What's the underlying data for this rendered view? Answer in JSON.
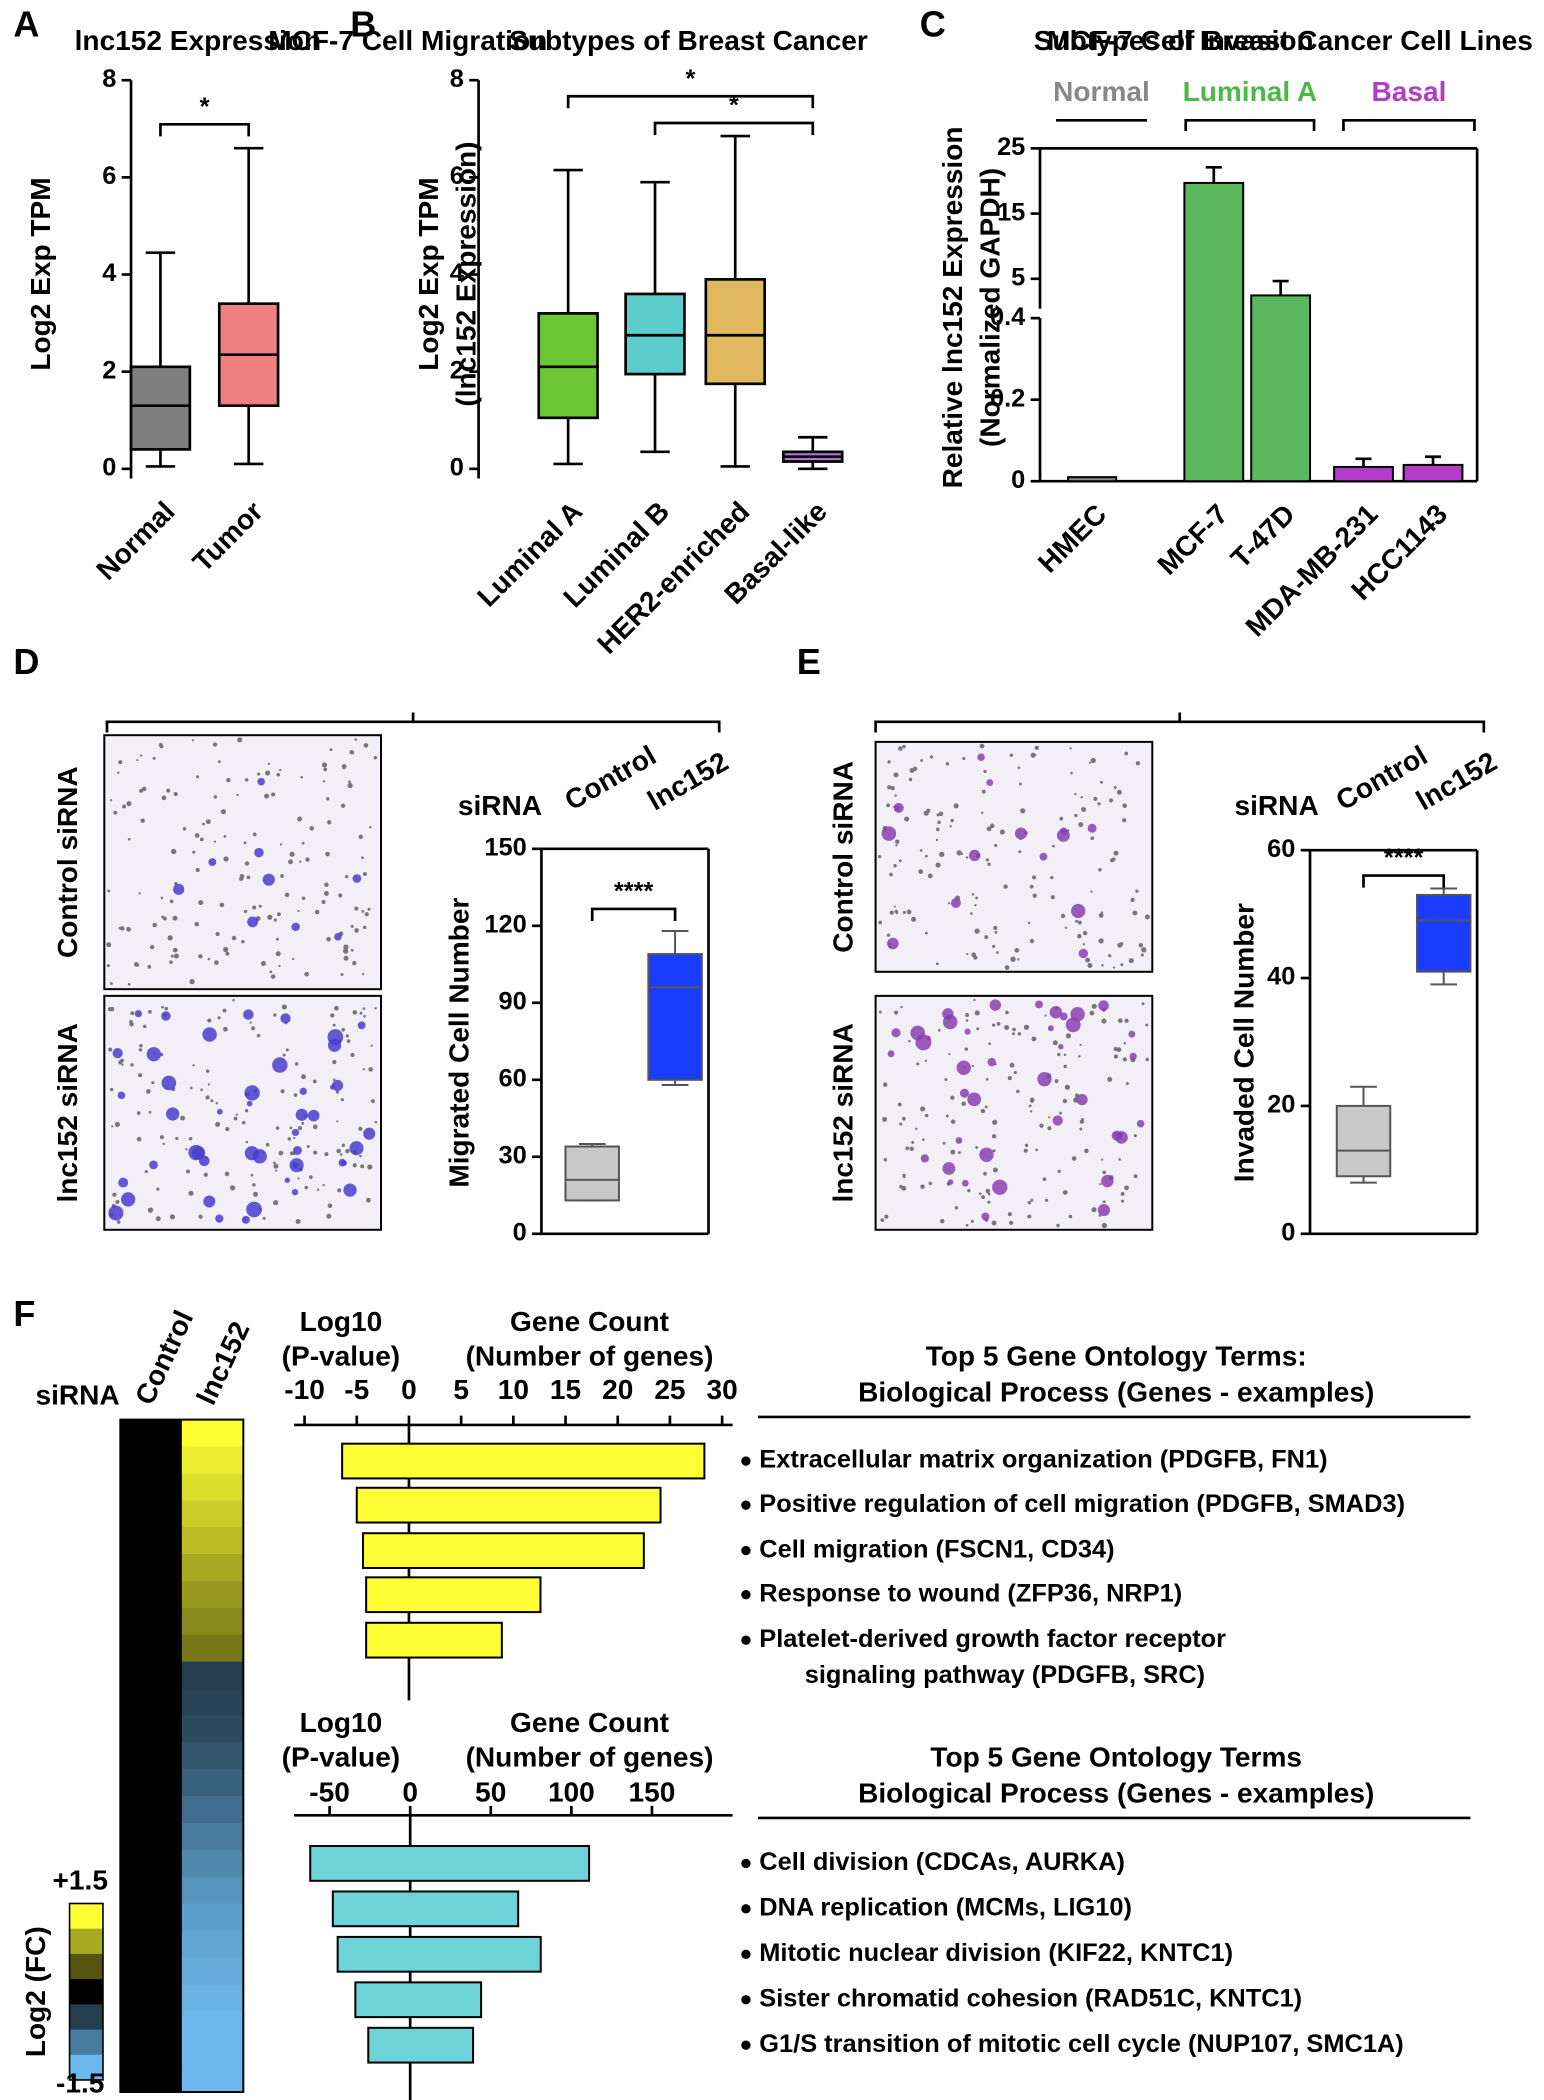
{
  "chart_data": [
    {
      "panel": "A",
      "type": "box",
      "title": "lnc152 Expression",
      "ylabel": [
        "Log2 Exp TPM"
      ],
      "categories": [
        "Normal",
        "Tumor"
      ],
      "values": [
        {
          "min": 0.05,
          "q1": 0.4,
          "median": 1.3,
          "q3": 2.1,
          "max": 4.45
        },
        {
          "min": 0.1,
          "q1": 1.3,
          "median": 2.35,
          "q3": 3.4,
          "max": 6.6
        }
      ],
      "colors": [
        "#7f7f7f",
        "#f08080"
      ],
      "ylim": [
        -0.2,
        8
      ],
      "yticks": [
        0,
        2,
        4,
        6,
        8
      ],
      "annotations": [
        {
          "text": "*",
          "between": [
            "Normal",
            "Tumor"
          ]
        }
      ]
    },
    {
      "panel": "B",
      "type": "box",
      "title": "Subtypes of Breast Cancer",
      "ylabel": [
        "Log2 Exp TPM",
        "(lnc152 Expression)"
      ],
      "categories": [
        "Luminal A",
        "Luminal B",
        "HER2-enriched",
        "Basal-like"
      ],
      "values": [
        {
          "min": 0.1,
          "q1": 1.05,
          "median": 2.1,
          "q3": 3.2,
          "max": 6.15
        },
        {
          "min": 0.35,
          "q1": 1.95,
          "median": 2.75,
          "q3": 3.6,
          "max": 5.9
        },
        {
          "min": 0.05,
          "q1": 1.75,
          "median": 2.75,
          "q3": 3.9,
          "max": 6.85
        },
        {
          "min": 0.0,
          "q1": 0.15,
          "median": 0.25,
          "q3": 0.35,
          "max": 0.65
        }
      ],
      "colors": [
        "#6cc832",
        "#5ccccc",
        "#e0b860",
        "#b070d0"
      ],
      "ylim": [
        -0.2,
        8
      ],
      "yticks": [
        0,
        2,
        4,
        6,
        8
      ],
      "annotations": [
        {
          "text": "*",
          "between": [
            "Luminal A",
            "Basal-like"
          ]
        },
        {
          "text": "*",
          "between": [
            "Luminal B",
            "Basal-like"
          ]
        }
      ]
    },
    {
      "panel": "C",
      "type": "bar",
      "title": "Subtypes of Breast Cancer Cell Lines",
      "ylabel": [
        "Relative lnc152 Expression",
        "(Normalized GAPDH)"
      ],
      "categories": [
        "HMEC",
        "MCF-7",
        "T-47D",
        "MDA-MB-231",
        "HCC1143"
      ],
      "values": [
        0.01,
        19.7,
        2.45,
        0.035,
        0.04
      ],
      "errors": [
        null,
        2.4,
        2.2,
        0.02,
        0.02
      ],
      "colors": [
        "#888888",
        "#5cb85c",
        "#5cb85c",
        "#b03cc8",
        "#b03cc8"
      ],
      "groups": [
        {
          "label": "Normal",
          "color": "#888888"
        },
        {
          "label": "Luminal A",
          "color": "#4cb848"
        },
        {
          "label": "Basal",
          "color": "#b03cc8"
        }
      ],
      "ylim": [
        0,
        25
      ],
      "ybreak": 0.4,
      "yticks": [
        0,
        0.2,
        0.4,
        5,
        15,
        25
      ]
    },
    {
      "panel": "D",
      "type": "micrographs",
      "title": "MCF-7 Cell Migration",
      "row_labels": [
        "Control siRNA",
        "lnc152 siRNA"
      ],
      "color": "#4a3ccf"
    },
    {
      "type": "box",
      "group_label": "siRNA",
      "ylabel": [
        "Migrated Cell Number"
      ],
      "categories": [
        "Control",
        "lnc152"
      ],
      "values": [
        {
          "min": 13,
          "q1": 13,
          "median": 21,
          "q3": 34,
          "max": 35
        },
        {
          "min": 58,
          "q1": 60,
          "median": 96,
          "q3": 109,
          "max": 118
        }
      ],
      "colors": [
        "#c8c8c8",
        "#1a3cff"
      ],
      "ylim": [
        0,
        150
      ],
      "yticks": [
        0,
        30,
        60,
        90,
        120,
        150
      ],
      "annotations": [
        {
          "text": "****",
          "between": [
            "Control",
            "lnc152"
          ]
        }
      ]
    },
    {
      "panel": "E",
      "type": "micrographs",
      "title": "MCF-7 Cell Invasion",
      "row_labels": [
        "Control siRNA",
        "lnc152 siRNA"
      ],
      "color": "#8a40b0"
    },
    {
      "type": "box",
      "group_label": "siRNA",
      "ylabel": [
        "Invaded Cell Number"
      ],
      "categories": [
        "Control",
        "lnc152"
      ],
      "values": [
        {
          "min": 8,
          "q1": 9,
          "median": 13,
          "q3": 20,
          "max": 23
        },
        {
          "min": 39,
          "q1": 41,
          "median": 49,
          "q3": 53,
          "max": 54
        }
      ],
      "colors": [
        "#c8c8c8",
        "#1a3cff"
      ],
      "ylim": [
        0,
        60
      ],
      "yticks": [
        0,
        20,
        40,
        60
      ],
      "annotations": [
        {
          "text": "****",
          "between": [
            "Control",
            "lnc152"
          ]
        }
      ]
    },
    {
      "panel": "F",
      "type": "heatmap",
      "row_label": "siRNA",
      "columns": [
        "Control",
        "lnc152"
      ],
      "values": [
        [
          0,
          1.5
        ],
        [
          0,
          1.4
        ],
        [
          0,
          1.3
        ],
        [
          0,
          1.2
        ],
        [
          0,
          1.1
        ],
        [
          0,
          1.0
        ],
        [
          0,
          0.9
        ],
        [
          0,
          0.8
        ],
        [
          0,
          0.7
        ],
        [
          0,
          -0.5
        ],
        [
          0,
          -0.55
        ],
        [
          0,
          -0.6
        ],
        [
          0,
          -0.7
        ],
        [
          0,
          -0.8
        ],
        [
          0,
          -0.9
        ],
        [
          0,
          -1.0
        ],
        [
          0,
          -1.1
        ],
        [
          0,
          -1.2
        ],
        [
          0,
          -1.3
        ],
        [
          0,
          -1.35
        ],
        [
          0,
          -1.4
        ],
        [
          0,
          -1.45
        ],
        [
          0,
          -1.5
        ],
        [
          0,
          -1.5
        ],
        [
          0,
          -1.5
        ]
      ],
      "colorbar": {
        "label": "Log2 (FC)",
        "ticks": [
          {
            "value": 1.5,
            "label": "+1.5"
          },
          -1.5
        ]
      }
    },
    {
      "type": "diverging_bar",
      "color": "#ffff33",
      "series": [
        {
          "name_lines": [
            "Log10",
            "(P-value)"
          ],
          "values": [
            -6.4,
            -5.0,
            -4.4,
            -4.1,
            -4.1
          ]
        },
        {
          "name_lines": [
            "Gene Count",
            "(Number of genes)"
          ],
          "values": [
            28.3,
            24.1,
            22.5,
            12.6,
            8.9
          ]
        }
      ],
      "xlim": [
        -11,
        31
      ],
      "xticks": [
        -10,
        -5,
        0,
        5,
        10,
        15,
        20,
        25,
        30
      ],
      "header": [
        "Top 5 Gene Ontology Terms:",
        "Biological Process (Genes - examples)"
      ],
      "categories": [
        [
          "Extracellular matrix organization (PDGFB, FN1)"
        ],
        [
          "Positive regulation of cell migration (PDGFB, SMAD3)"
        ],
        [
          "Cell migration (FSCN1, CD34)"
        ],
        [
          "Response to wound (ZFP36, NRP1)"
        ],
        [
          "Platelet-derived growth factor receptor",
          "signaling pathway (PDGFB, SRC)"
        ]
      ]
    },
    {
      "type": "diverging_bar",
      "color": "#6dd3d8",
      "series": [
        {
          "name_lines": [
            "Log10",
            "(P-value)"
          ],
          "values": [
            -62,
            -48,
            -45,
            -34,
            -26
          ]
        },
        {
          "name_lines": [
            "Gene Count",
            "(Number of genes)"
          ],
          "values": [
            111,
            67,
            81,
            44,
            39
          ]
        }
      ],
      "xlim": [
        -72,
        200
      ],
      "xticks": [
        -50,
        0,
        50,
        100,
        150
      ],
      "header": [
        "Top 5 Gene Ontology Terms",
        "Biological Process (Genes - examples)"
      ],
      "categories": [
        [
          "Cell division (CDCAs, AURKA)"
        ],
        [
          "DNA replication (MCMs, LIG10)"
        ],
        [
          "Mitotic nuclear division (KIF22, KNTC1)"
        ],
        [
          "Sister chromatid cohesion (RAD51C, KNTC1)"
        ],
        [
          "G1/S transition of mitotic cell cycle (NUP107, SMC1A)"
        ]
      ]
    }
  ]
}
